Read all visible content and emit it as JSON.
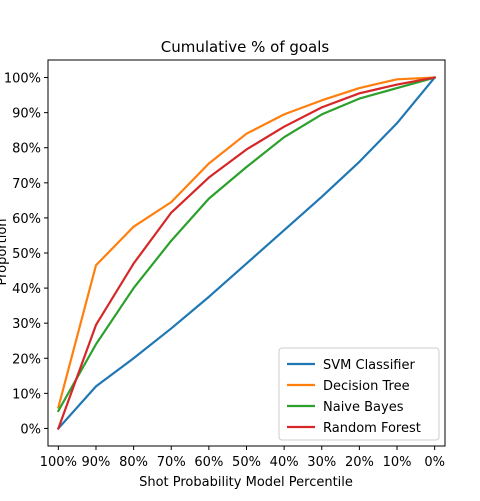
{
  "chart_data": {
    "type": "line",
    "title": "Cumulative % of goals",
    "xlabel": "Shot Probability Model Percentile",
    "ylabel": "Proportion",
    "x": [
      100,
      90,
      80,
      70,
      60,
      50,
      40,
      30,
      20,
      10,
      0
    ],
    "x_tick_labels": [
      "100%",
      "90%",
      "80%",
      "70%",
      "60%",
      "50%",
      "40%",
      "30%",
      "20%",
      "10%",
      "0%"
    ],
    "x_reversed": true,
    "ylim": [
      -5,
      105
    ],
    "y_ticks": [
      0,
      10,
      20,
      30,
      40,
      50,
      60,
      70,
      80,
      90,
      100
    ],
    "y_tick_labels": [
      "0%",
      "10%",
      "20%",
      "30%",
      "40%",
      "50%",
      "60%",
      "70%",
      "80%",
      "90%",
      "100%"
    ],
    "grid": false,
    "legend": "bottom-right",
    "series": [
      {
        "name": "SVM Classifier",
        "color": "#1f77b4",
        "values": [
          0,
          12,
          20,
          28.5,
          37.5,
          47,
          56.5,
          66,
          76,
          87,
          100
        ]
      },
      {
        "name": "Decision Tree",
        "color": "#ff7f0e",
        "values": [
          6,
          46.5,
          57.5,
          64.5,
          75.5,
          84,
          89.5,
          93.5,
          97,
          99.5,
          100
        ]
      },
      {
        "name": "Naive Bayes",
        "color": "#2ca02c",
        "values": [
          5,
          24,
          40,
          53.5,
          65.5,
          74.5,
          83,
          89.5,
          94,
          97,
          100
        ]
      },
      {
        "name": "Random Forest",
        "color": "#d62728",
        "values": [
          0,
          29.5,
          47,
          61.5,
          71.5,
          79.5,
          86,
          91.5,
          95.5,
          98,
          100
        ]
      }
    ]
  }
}
